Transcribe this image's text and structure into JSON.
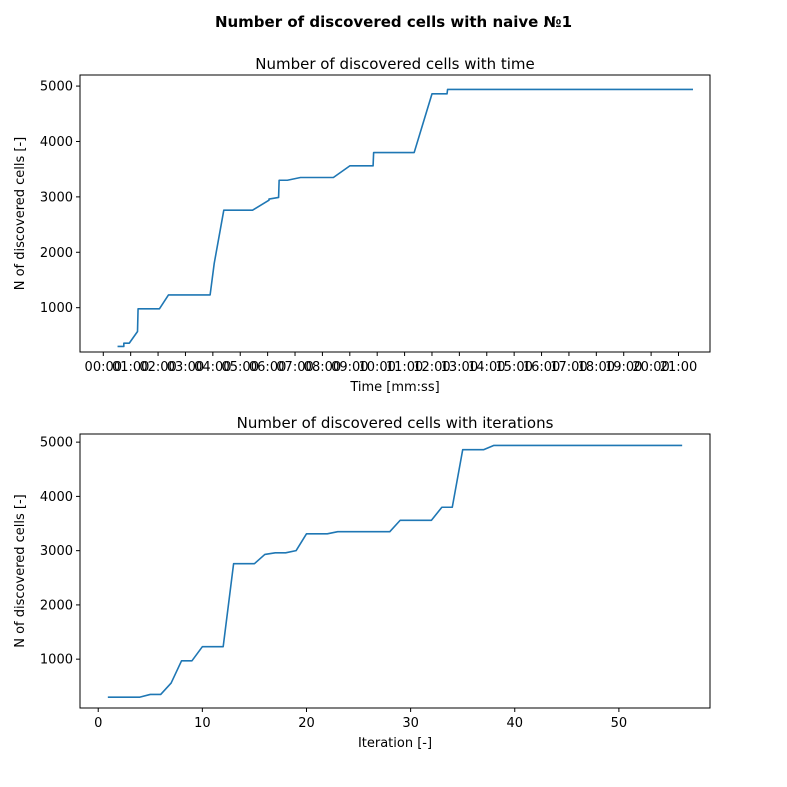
{
  "figure": {
    "suptitle": "Number of discovered cells with naive №1"
  },
  "colors": {
    "series": "#1f77b4",
    "axes": "#000000",
    "background": "#ffffff"
  },
  "chart_data": [
    {
      "type": "line",
      "title": "Number of discovered cells with time",
      "xlabel": "Time [mm:ss]",
      "ylabel": "N of discovered cells [-]",
      "x_unit": "minutes",
      "xlim": [
        -0.85,
        22.15
      ],
      "ylim": [
        200,
        5200
      ],
      "grid": false,
      "xticks": [
        0,
        1,
        2,
        3,
        4,
        5,
        6,
        7,
        8,
        9,
        10,
        11,
        12,
        13,
        14,
        15,
        16,
        17,
        18,
        19,
        20,
        21
      ],
      "xtick_labels": [
        "00:00",
        "01:00",
        "02:00",
        "03:00",
        "04:00",
        "05:00",
        "06:00",
        "07:00",
        "08:00",
        "09:00",
        "10:00",
        "11:00",
        "12:00",
        "13:00",
        "14:00",
        "15:00",
        "16:00",
        "17:00",
        "18:00",
        "19:00",
        "20:00",
        "21:00"
      ],
      "yticks": [
        1000,
        2000,
        3000,
        4000,
        5000
      ],
      "ytick_labels": [
        "1000",
        "2000",
        "3000",
        "4000",
        "5000"
      ],
      "series": [
        {
          "x": [
            0.55,
            0.75,
            0.75,
            0.95,
            1.25,
            1.27,
            2.05,
            2.38,
            3.9,
            4.05,
            4.4,
            5.45,
            6.05,
            6.05,
            6.4,
            6.42,
            6.72,
            7.2,
            8.4,
            9.0,
            9.85,
            9.87,
            11.35,
            12.0,
            12.55,
            12.57,
            21.5
          ],
          "y": [
            300,
            300,
            360,
            360,
            570,
            980,
            980,
            1230,
            1230,
            1800,
            2760,
            2760,
            2940,
            2960,
            2990,
            3300,
            3300,
            3350,
            3350,
            3560,
            3560,
            3800,
            3800,
            4860,
            4860,
            4940,
            4940
          ]
        }
      ]
    },
    {
      "type": "line",
      "title": "Number of discovered cells with iterations",
      "xlabel": "Iteration [-]",
      "ylabel": "N of discovered cells [-]",
      "xlim": [
        -1.75,
        58.75
      ],
      "ylim": [
        100,
        5150
      ],
      "grid": false,
      "xticks": [
        0,
        10,
        20,
        30,
        40,
        50
      ],
      "xtick_labels": [
        "0",
        "10",
        "20",
        "30",
        "40",
        "50"
      ],
      "yticks": [
        1000,
        2000,
        3000,
        4000,
        5000
      ],
      "ytick_labels": [
        "1000",
        "2000",
        "3000",
        "4000",
        "5000"
      ],
      "series": [
        {
          "x": [
            1,
            2,
            3,
            4,
            5,
            6,
            7,
            8,
            9,
            10,
            11,
            12,
            13,
            14,
            15,
            16,
            17,
            18,
            19,
            20,
            21,
            22,
            23,
            24,
            25,
            26,
            27,
            28,
            29,
            30,
            31,
            32,
            33,
            34,
            35,
            36,
            37,
            38,
            39,
            40,
            41,
            42,
            43,
            44,
            45,
            46,
            47,
            48,
            49,
            50,
            51,
            52,
            53,
            54,
            55,
            56
          ],
          "y": [
            300,
            300,
            300,
            300,
            350,
            350,
            560,
            970,
            970,
            1230,
            1230,
            1230,
            2760,
            2760,
            2760,
            2930,
            2960,
            2960,
            3000,
            3310,
            3310,
            3310,
            3350,
            3350,
            3350,
            3350,
            3350,
            3350,
            3560,
            3560,
            3560,
            3560,
            3800,
            3800,
            4860,
            4860,
            4860,
            4940,
            4940,
            4940,
            4940,
            4940,
            4940,
            4940,
            4940,
            4940,
            4940,
            4940,
            4940,
            4940,
            4940,
            4940,
            4940,
            4940,
            4940,
            4940
          ]
        }
      ]
    }
  ]
}
